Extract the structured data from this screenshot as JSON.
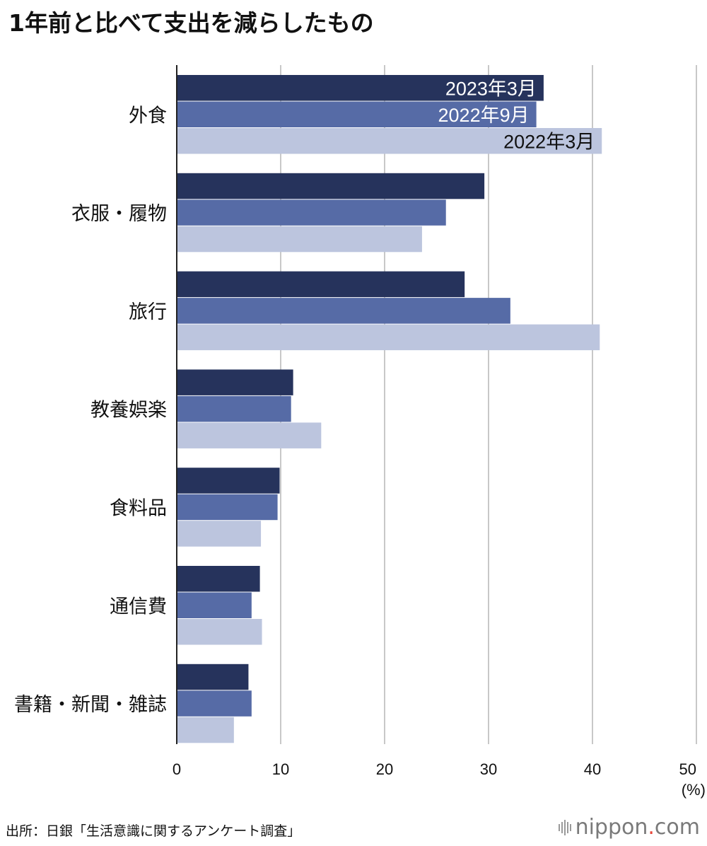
{
  "title": "1年前と比べて支出を減らしたもの",
  "source": "出所：日銀「生活意識に関するアンケート調査」",
  "logo": {
    "name": "nippon",
    "dot": ".",
    "suffix": "com"
  },
  "colors": {
    "series_2023_03": "#26335c",
    "series_2022_09": "#566ba6",
    "series_2022_03": "#bcc5de",
    "grid": "#c8c8c8",
    "axis": "#222222",
    "logo_dot": "#e8473a"
  },
  "chart_data": {
    "type": "bar",
    "orientation": "horizontal",
    "categories": [
      "外食",
      "衣服・履物",
      "旅行",
      "教養娯楽",
      "食料品",
      "通信費",
      "書籍・新聞・雑誌"
    ],
    "series": [
      {
        "name": "2023年3月",
        "values": [
          35.3,
          29.6,
          27.7,
          11.2,
          9.9,
          8.0,
          6.9
        ]
      },
      {
        "name": "2022年9月",
        "values": [
          34.6,
          25.9,
          32.1,
          11.0,
          9.7,
          7.2,
          7.2
        ]
      },
      {
        "name": "2022年3月",
        "values": [
          40.9,
          23.6,
          40.7,
          13.9,
          8.1,
          8.2,
          5.5
        ]
      }
    ],
    "xlim": [
      0,
      50
    ],
    "xticks": [
      "0",
      "10",
      "20",
      "30",
      "40",
      "50"
    ],
    "xunit": "(%)",
    "grid": true,
    "legend": "inline labels in first category bars"
  }
}
